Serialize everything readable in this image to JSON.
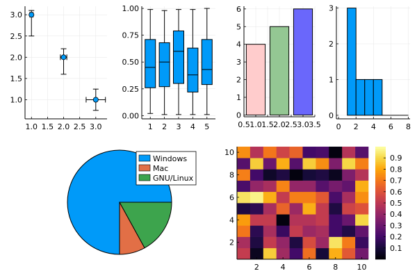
{
  "chart_data": [
    {
      "type": "scatter",
      "x": [
        1,
        2,
        3
      ],
      "y": [
        3.0,
        2.0,
        1.0
      ],
      "xerr": [
        0.05,
        0.1,
        0.3
      ],
      "yerr": [
        [
          0.5,
          0.1
        ],
        [
          0.4,
          0.2
        ],
        [
          0.25,
          0.25
        ]
      ],
      "xlim": [
        0.8,
        3.35
      ],
      "ylim": [
        0.55,
        3.2
      ],
      "xticks": [
        1,
        1.5,
        2,
        2.5,
        3
      ],
      "xtick_labels": [
        "1.0",
        "1.5",
        "2.0",
        "2.5",
        "3.0"
      ],
      "yticks": [
        1,
        1.5,
        2,
        2.5,
        3
      ],
      "ytick_labels": [
        "1.0",
        "1.5",
        "2.0",
        "2.5",
        "3.0"
      ],
      "grid": true,
      "color": "#009af9"
    },
    {
      "type": "box",
      "categories": [
        "1",
        "2",
        "3",
        "4",
        "5"
      ],
      "boxes": [
        {
          "min": 0.02,
          "q1": 0.26,
          "median": 0.45,
          "q3": 0.71,
          "max": 0.99
        },
        {
          "min": 0.01,
          "q1": 0.27,
          "median": 0.5,
          "q3": 0.68,
          "max": 0.98
        },
        {
          "min": 0.01,
          "q1": 0.3,
          "median": 0.6,
          "q3": 0.79,
          "max": 0.99
        },
        {
          "min": 0.01,
          "q1": 0.22,
          "median": 0.38,
          "q3": 0.63,
          "max": 0.99
        },
        {
          "min": 0.01,
          "q1": 0.29,
          "median": 0.43,
          "q3": 0.71,
          "max": 1.0
        }
      ],
      "ylim": [
        -0.03,
        1.02
      ],
      "yticks": [
        0,
        0.25,
        0.5,
        0.75,
        1
      ],
      "ytick_labels": [
        "0.00",
        "0.25",
        "0.50",
        "0.75",
        "1.00"
      ],
      "xlim": [
        0.4,
        5.6
      ],
      "grid": true,
      "color": "#009af9"
    },
    {
      "type": "bar",
      "x": [
        1,
        2,
        3
      ],
      "values": [
        4,
        5,
        6
      ],
      "bar_width": 0.8,
      "colors": [
        "#ffcccc",
        "#94c793",
        "#6a67fb"
      ],
      "xlim": [
        0.5,
        3.5
      ],
      "ylim": [
        -0.1,
        6.15
      ],
      "xticks": [
        0.5,
        1,
        1.5,
        2,
        2.5,
        3,
        3.5
      ],
      "xtick_labels": [
        "0.5",
        "1.0",
        "1.5",
        "2.0",
        "2.5",
        "3.0",
        "3.5"
      ],
      "yticks": [
        0,
        1,
        2,
        3,
        4,
        5,
        6
      ],
      "ytick_labels": [
        "0",
        "1",
        "2",
        "3",
        "4",
        "5",
        "6"
      ],
      "grid": true
    },
    {
      "type": "histogram",
      "bins": [
        [
          1,
          2,
          3
        ],
        [
          2,
          3,
          1
        ],
        [
          3,
          4,
          1
        ],
        [
          4,
          5,
          1
        ],
        [
          5,
          6,
          0
        ],
        [
          6,
          7,
          0
        ],
        [
          7,
          8,
          0
        ]
      ],
      "xlim": [
        -0.25,
        8.2
      ],
      "ylim": [
        -0.1,
        3.05
      ],
      "xticks": [
        0,
        2,
        4,
        6,
        8
      ],
      "xtick_labels": [
        "0",
        "2",
        "4",
        "6",
        "8"
      ],
      "yticks": [
        0,
        1,
        2,
        3
      ],
      "ytick_labels": [
        "0",
        "1",
        "2",
        "3"
      ],
      "grid": true,
      "color": "#009af9"
    },
    {
      "type": "pie",
      "slices": [
        {
          "label": "Windows",
          "value": 0.75,
          "color": "#009af9"
        },
        {
          "label": "Mac",
          "value": 0.08,
          "color": "#e26f46"
        },
        {
          "label": "GNU/Linux",
          "value": 0.17,
          "color": "#3da44d"
        }
      ],
      "legend": "top-right"
    },
    {
      "type": "heatmap",
      "rows": 10,
      "cols": 10,
      "values": [
        [
          0.52,
          0.05,
          0.88,
          0.43,
          0.2,
          0.68,
          0.1,
          0.82,
          0.62,
          0.32
        ],
        [
          0.45,
          0.12,
          0.52,
          0.4,
          0.12,
          0.58,
          0.42,
          0.93,
          0.71,
          0.18
        ],
        [
          0.7,
          0.15,
          0.45,
          0.18,
          0.52,
          0.42,
          0.45,
          0.2,
          0.13,
          0.28
        ],
        [
          0.78,
          0.52,
          0.52,
          0.02,
          0.48,
          0.48,
          0.52,
          0.2,
          0.3,
          0.9
        ],
        [
          0.12,
          0.15,
          0.45,
          0.65,
          0.42,
          0.82,
          0.52,
          0.12,
          0.55,
          0.6
        ],
        [
          0.93,
          0.97,
          0.82,
          0.52,
          0.72,
          0.72,
          0.62,
          0.22,
          0.45,
          0.75
        ],
        [
          0.22,
          0.4,
          0.45,
          0.73,
          0.4,
          0.4,
          0.25,
          0.33,
          0.28,
          0.82
        ],
        [
          0.72,
          0.2,
          0.07,
          0.12,
          0.02,
          0.1,
          0.12,
          0.05,
          0.35,
          0.48
        ],
        [
          0.25,
          0.88,
          0.3,
          0.82,
          0.25,
          0.88,
          0.75,
          0.35,
          0.9,
          0.72
        ],
        [
          0.75,
          0.48,
          0.7,
          0.55,
          0.65,
          0.2,
          0.22,
          0.02,
          0.48,
          0.25
        ]
      ],
      "zlim": [
        0,
        1
      ],
      "xticks": [
        2,
        4,
        6,
        8,
        10
      ],
      "xtick_labels": [
        "2",
        "4",
        "6",
        "8",
        "10"
      ],
      "yticks": [
        2,
        4,
        6,
        8,
        10
      ],
      "ytick_labels": [
        "2",
        "4",
        "6",
        "8",
        "10"
      ],
      "colorbar_ticks": [
        0.1,
        0.2,
        0.3,
        0.4,
        0.5,
        0.6,
        0.7,
        0.8,
        0.9
      ],
      "colorbar_tick_labels": [
        "0.1",
        "0.2",
        "0.3",
        "0.4",
        "0.5",
        "0.6",
        "0.7",
        "0.8",
        "0.9"
      ],
      "colormap": "inferno"
    }
  ]
}
